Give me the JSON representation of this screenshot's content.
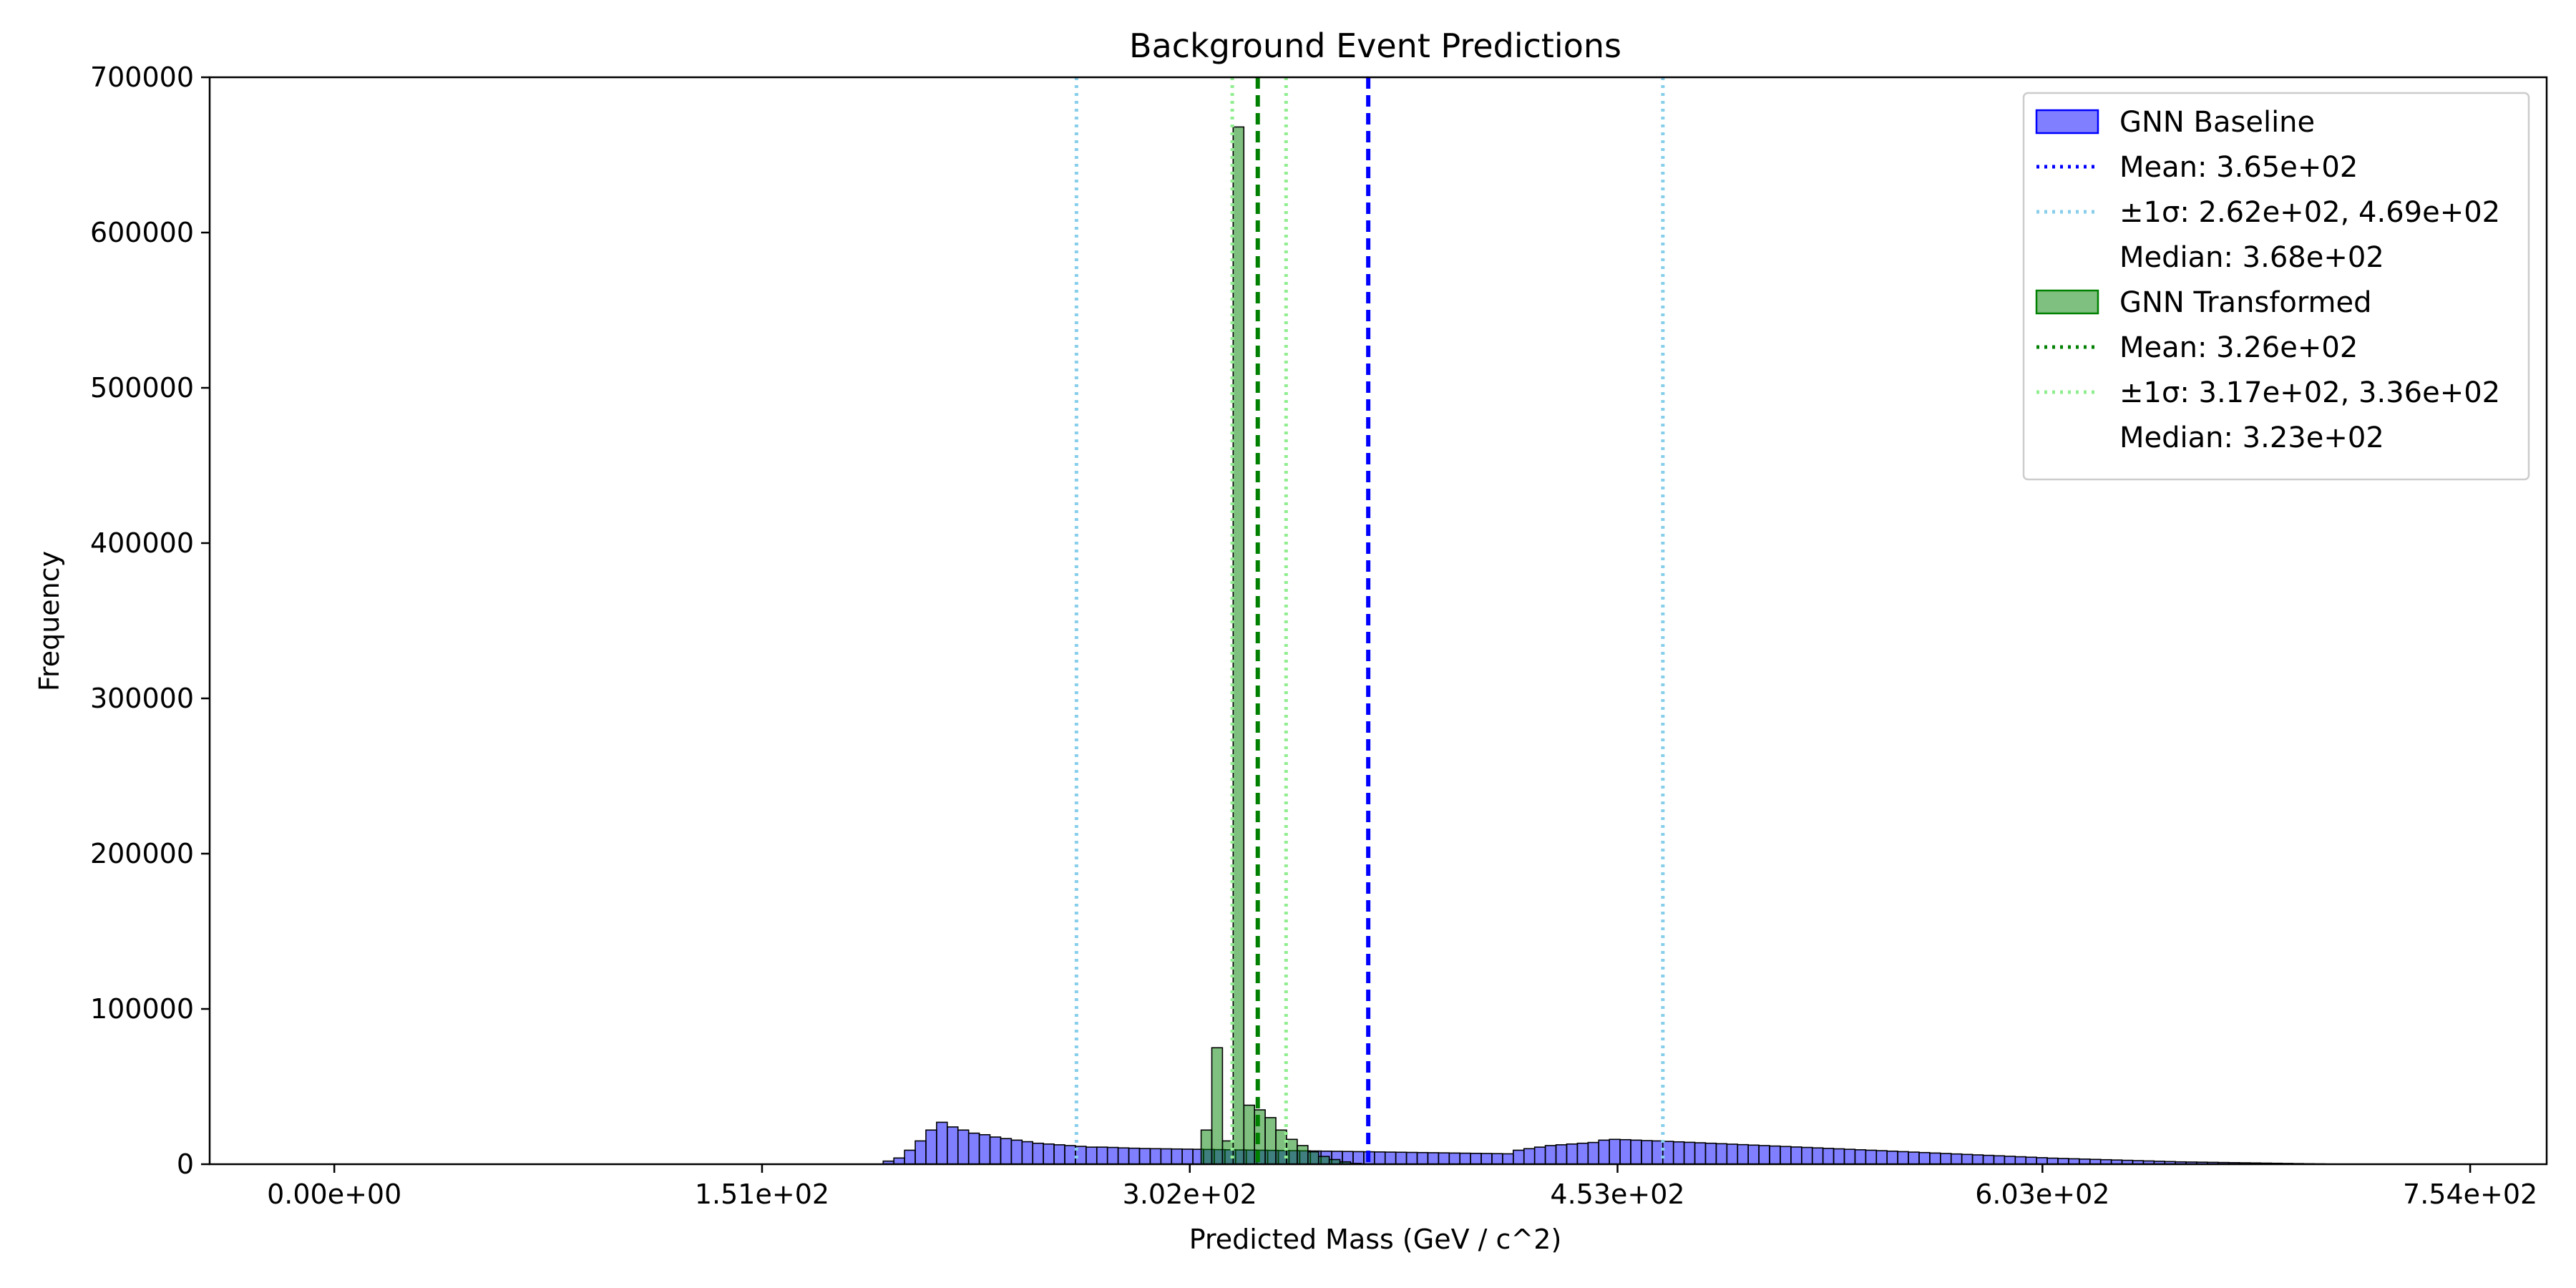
{
  "chart_data": {
    "type": "histogram",
    "title": "Background Event Predictions",
    "xlabel": "Predicted Mass (GeV / c^2)",
    "ylabel": "Frequency",
    "xlim": [
      -44,
      781
    ],
    "ylim": [
      0,
      700000
    ],
    "x_ticks": [
      0,
      151,
      302,
      453,
      603,
      754
    ],
    "x_tick_labels": [
      "0.00e+00",
      "1.51e+02",
      "3.02e+02",
      "4.53e+02",
      "6.03e+02",
      "7.54e+02"
    ],
    "y_ticks": [
      0,
      100000,
      200000,
      300000,
      400000,
      500000,
      600000,
      700000
    ],
    "y_tick_labels": [
      "0",
      "100000",
      "200000",
      "300000",
      "400000",
      "500000",
      "600000",
      "700000"
    ],
    "legend_position": "top-right",
    "series": [
      {
        "name": "GNN Baseline",
        "color": "#0000ff",
        "bin_start": 190,
        "bin_width": 3.77,
        "counts": [
          0,
          2000,
          4000,
          9000,
          15000,
          22000,
          27000,
          24000,
          22000,
          20000,
          19000,
          17500,
          16500,
          15500,
          14500,
          13500,
          13000,
          12500,
          12000,
          11500,
          11000,
          11000,
          10800,
          10500,
          10300,
          10100,
          10000,
          9900,
          9800,
          9700,
          9600,
          9500,
          9400,
          9300,
          9200,
          9100,
          9000,
          8900,
          8800,
          8700,
          8600,
          8500,
          8400,
          8300,
          8200,
          8100,
          8000,
          7900,
          7800,
          7700,
          7600,
          7500,
          7400,
          7300,
          7200,
          7100,
          7000,
          6900,
          6800,
          6700,
          9000,
          10000,
          11000,
          12000,
          12500,
          13000,
          13500,
          14000,
          15500,
          16000,
          15800,
          15500,
          15200,
          15000,
          14700,
          14400,
          14100,
          13800,
          13500,
          13200,
          12900,
          12600,
          12300,
          12000,
          11700,
          11400,
          11100,
          10800,
          10500,
          10200,
          9900,
          9600,
          9300,
          9000,
          8700,
          8400,
          8100,
          7800,
          7500,
          7200,
          6900,
          6600,
          6300,
          6000,
          5700,
          5400,
          5100,
          4800,
          4500,
          4200,
          3900,
          3700,
          3500,
          3300,
          3100,
          2900,
          2700,
          2500,
          2300,
          2100,
          1900,
          1700,
          1500,
          1400,
          1300,
          1200,
          1100,
          1000,
          900,
          800,
          700,
          600,
          500,
          400,
          300,
          200,
          100,
          0
        ]
      },
      {
        "name": "GNN Transformed",
        "color": "#008000",
        "bin_start": 306,
        "bin_width": 3.77,
        "counts": [
          22000,
          75000,
          15000,
          668000,
          38000,
          35000,
          30000,
          22000,
          16000,
          12000,
          8000,
          5000,
          3000,
          1500,
          500
        ]
      }
    ],
    "lines": [
      {
        "label": "Mean: 3.65e+02",
        "x": 365,
        "color": "#0000ff",
        "style": "dashed"
      },
      {
        "label": "±1σ: 2.62e+02, 4.69e+02",
        "x": [
          262,
          469
        ],
        "color": "#87ceeb",
        "style": "dotted"
      },
      {
        "label": "Median: 3.68e+02",
        "x": 368,
        "color": "#0000ff"
      },
      {
        "label": "Mean: 3.26e+02",
        "x": 326,
        "color": "#008000",
        "style": "dashed"
      },
      {
        "label": "±1σ: 3.17e+02, 3.36e+02",
        "x": [
          317,
          336
        ],
        "color": "#90ee90",
        "style": "dotted"
      },
      {
        "label": "Median: 3.23e+02",
        "x": 323,
        "color": "#008000"
      }
    ],
    "legend": [
      {
        "label": "GNN Baseline",
        "kind": "patch",
        "color": "#0000ff"
      },
      {
        "label": "Mean: 3.65e+02",
        "kind": "line",
        "color": "#0000ff",
        "style": "dotted"
      },
      {
        "label": "±1σ: 2.62e+02, 4.69e+02",
        "kind": "line",
        "color": "#87ceeb",
        "style": "dotted"
      },
      {
        "label": "Median: 3.68e+02",
        "kind": "none"
      },
      {
        "label": "GNN Transformed",
        "kind": "patch",
        "color": "#008000"
      },
      {
        "label": "Mean: 3.26e+02",
        "kind": "line",
        "color": "#008000",
        "style": "dotted"
      },
      {
        "label": "±1σ: 3.17e+02, 3.36e+02",
        "kind": "line",
        "color": "#90ee90",
        "style": "dotted"
      },
      {
        "label": "Median: 3.23e+02",
        "kind": "none"
      }
    ]
  }
}
